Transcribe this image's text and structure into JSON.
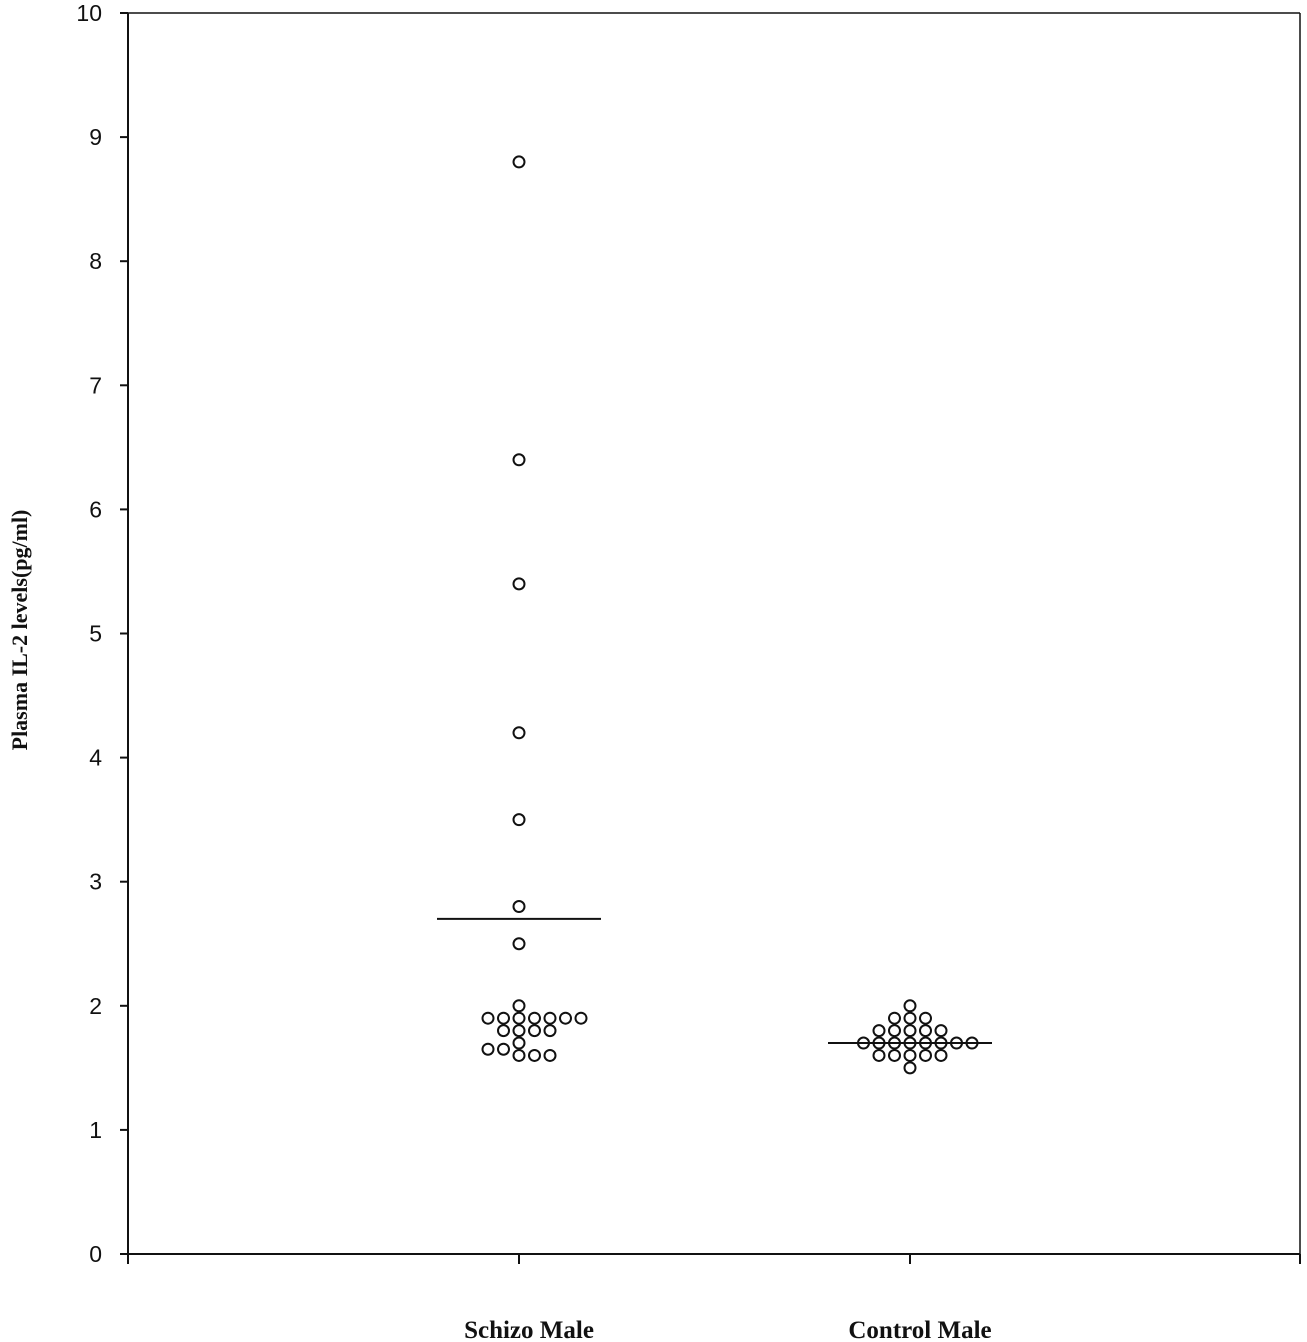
{
  "chart_data": {
    "type": "scatter",
    "ylabel": "Plasma IL-2 levels(pg/ml)",
    "xlabel": "",
    "ylim": [
      0,
      10
    ],
    "yticks": [
      0,
      1,
      2,
      3,
      4,
      5,
      6,
      7,
      8,
      9,
      10
    ],
    "categories": [
      "Schizo Male",
      "Control Male"
    ],
    "grid": false,
    "series": [
      {
        "category": "Schizo Male",
        "marker": "open-circle",
        "points": [
          {
            "offset": 0,
            "y": 8.8
          },
          {
            "offset": 0,
            "y": 6.4
          },
          {
            "offset": 0,
            "y": 5.4
          },
          {
            "offset": 0,
            "y": 4.2
          },
          {
            "offset": 0,
            "y": 3.5
          },
          {
            "offset": 0,
            "y": 2.8
          },
          {
            "offset": 0,
            "y": 2.5
          },
          {
            "offset": 0,
            "y": 2.0
          },
          {
            "offset": -2,
            "y": 1.9
          },
          {
            "offset": -1,
            "y": 1.9
          },
          {
            "offset": 0,
            "y": 1.9
          },
          {
            "offset": 1,
            "y": 1.9
          },
          {
            "offset": 2,
            "y": 1.9
          },
          {
            "offset": 3,
            "y": 1.9
          },
          {
            "offset": 4,
            "y": 1.9
          },
          {
            "offset": -1,
            "y": 1.8
          },
          {
            "offset": 0,
            "y": 1.8
          },
          {
            "offset": 1,
            "y": 1.8
          },
          {
            "offset": 2,
            "y": 1.8
          },
          {
            "offset": 0,
            "y": 1.7
          },
          {
            "offset": -2,
            "y": 1.65
          },
          {
            "offset": -1,
            "y": 1.65
          },
          {
            "offset": 0,
            "y": 1.6
          },
          {
            "offset": 1,
            "y": 1.6
          },
          {
            "offset": 2,
            "y": 1.6
          }
        ],
        "mean": 2.7
      },
      {
        "category": "Control Male",
        "marker": "open-circle",
        "points": [
          {
            "offset": 0,
            "y": 2.0
          },
          {
            "offset": -1,
            "y": 1.9
          },
          {
            "offset": 0,
            "y": 1.9
          },
          {
            "offset": 1,
            "y": 1.9
          },
          {
            "offset": -2,
            "y": 1.8
          },
          {
            "offset": -1,
            "y": 1.8
          },
          {
            "offset": 0,
            "y": 1.8
          },
          {
            "offset": 1,
            "y": 1.8
          },
          {
            "offset": 2,
            "y": 1.8
          },
          {
            "offset": -3,
            "y": 1.7
          },
          {
            "offset": -2,
            "y": 1.7
          },
          {
            "offset": -1,
            "y": 1.7
          },
          {
            "offset": 0,
            "y": 1.7
          },
          {
            "offset": 1,
            "y": 1.7
          },
          {
            "offset": 2,
            "y": 1.7
          },
          {
            "offset": 3,
            "y": 1.7
          },
          {
            "offset": 4,
            "y": 1.7
          },
          {
            "offset": -2,
            "y": 1.6
          },
          {
            "offset": -1,
            "y": 1.6
          },
          {
            "offset": 0,
            "y": 1.6
          },
          {
            "offset": 1,
            "y": 1.6
          },
          {
            "offset": 2,
            "y": 1.6
          },
          {
            "offset": 0,
            "y": 1.5
          }
        ],
        "mean": 1.7
      }
    ]
  }
}
